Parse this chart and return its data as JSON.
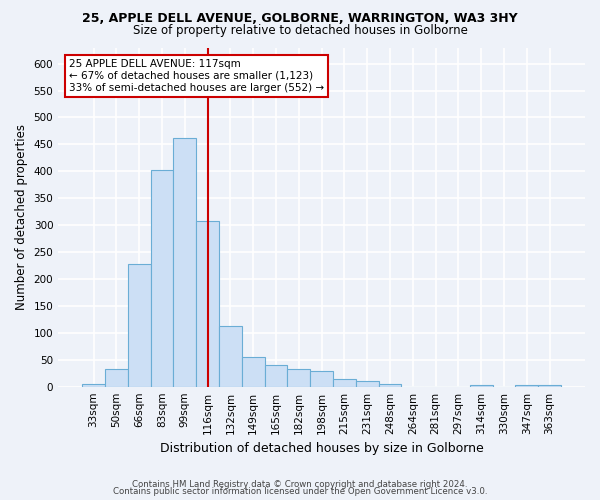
{
  "title1": "25, APPLE DELL AVENUE, GOLBORNE, WARRINGTON, WA3 3HY",
  "title2": "Size of property relative to detached houses in Golborne",
  "xlabel": "Distribution of detached houses by size in Golborne",
  "ylabel": "Number of detached properties",
  "bar_labels": [
    "33sqm",
    "50sqm",
    "66sqm",
    "83sqm",
    "99sqm",
    "116sqm",
    "132sqm",
    "149sqm",
    "165sqm",
    "182sqm",
    "198sqm",
    "215sqm",
    "231sqm",
    "248sqm",
    "264sqm",
    "281sqm",
    "297sqm",
    "314sqm",
    "330sqm",
    "347sqm",
    "363sqm"
  ],
  "bar_values": [
    5,
    32,
    228,
    402,
    462,
    307,
    112,
    55,
    40,
    32,
    30,
    14,
    10,
    5,
    0,
    0,
    0,
    4,
    0,
    3,
    3
  ],
  "bar_color": "#ccdff5",
  "bar_edge_color": "#6aadd5",
  "vline_x": 5.0,
  "vline_color": "#cc0000",
  "ylim": [
    0,
    630
  ],
  "yticks": [
    0,
    50,
    100,
    150,
    200,
    250,
    300,
    350,
    400,
    450,
    500,
    550,
    600
  ],
  "annotation_text": "25 APPLE DELL AVENUE: 117sqm\n← 67% of detached houses are smaller (1,123)\n33% of semi-detached houses are larger (552) →",
  "annotation_box_color": "#ffffff",
  "annotation_box_edge": "#cc0000",
  "footer1": "Contains HM Land Registry data © Crown copyright and database right 2024.",
  "footer2": "Contains public sector information licensed under the Open Government Licence v3.0.",
  "bg_color": "#eef2f9",
  "grid_color": "#ffffff"
}
